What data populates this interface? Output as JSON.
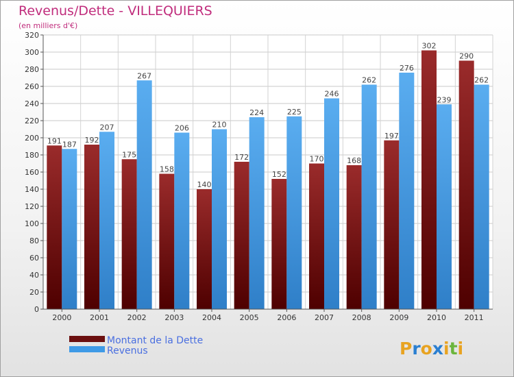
{
  "chart_data": {
    "type": "bar",
    "title": "Revenus/Dette - VILLEQUIERS",
    "subtitle": "(en milliers d'€)",
    "categories": [
      "2000",
      "2001",
      "2002",
      "2003",
      "2004",
      "2005",
      "2006",
      "2007",
      "2008",
      "2009",
      "2010",
      "2011"
    ],
    "series": [
      {
        "name": "Montant de la Dette",
        "color": "#8b1a1a",
        "values": [
          191,
          192,
          175,
          158,
          140,
          172,
          152,
          170,
          168,
          197,
          302,
          290
        ]
      },
      {
        "name": "Revenus",
        "color": "#3f9ae6",
        "values": [
          187,
          207,
          267,
          206,
          210,
          224,
          225,
          246,
          262,
          276,
          239,
          262
        ]
      }
    ],
    "yticks": [
      0,
      20,
      40,
      60,
      80,
      100,
      120,
      140,
      160,
      180,
      200,
      220,
      240,
      260,
      280,
      300,
      320
    ],
    "ylim": [
      0,
      320
    ],
    "grid": true,
    "legend": "bottom-left"
  },
  "logo": {
    "text": "Proxiti",
    "letters": [
      "P",
      "r",
      "o",
      "x",
      "i",
      "t",
      "i"
    ],
    "colors": [
      "#e8a321",
      "#2a7fd1",
      "#e8a321",
      "#2a7fd1",
      "#e8a321",
      "#6bb53c",
      "#e8a321"
    ]
  }
}
